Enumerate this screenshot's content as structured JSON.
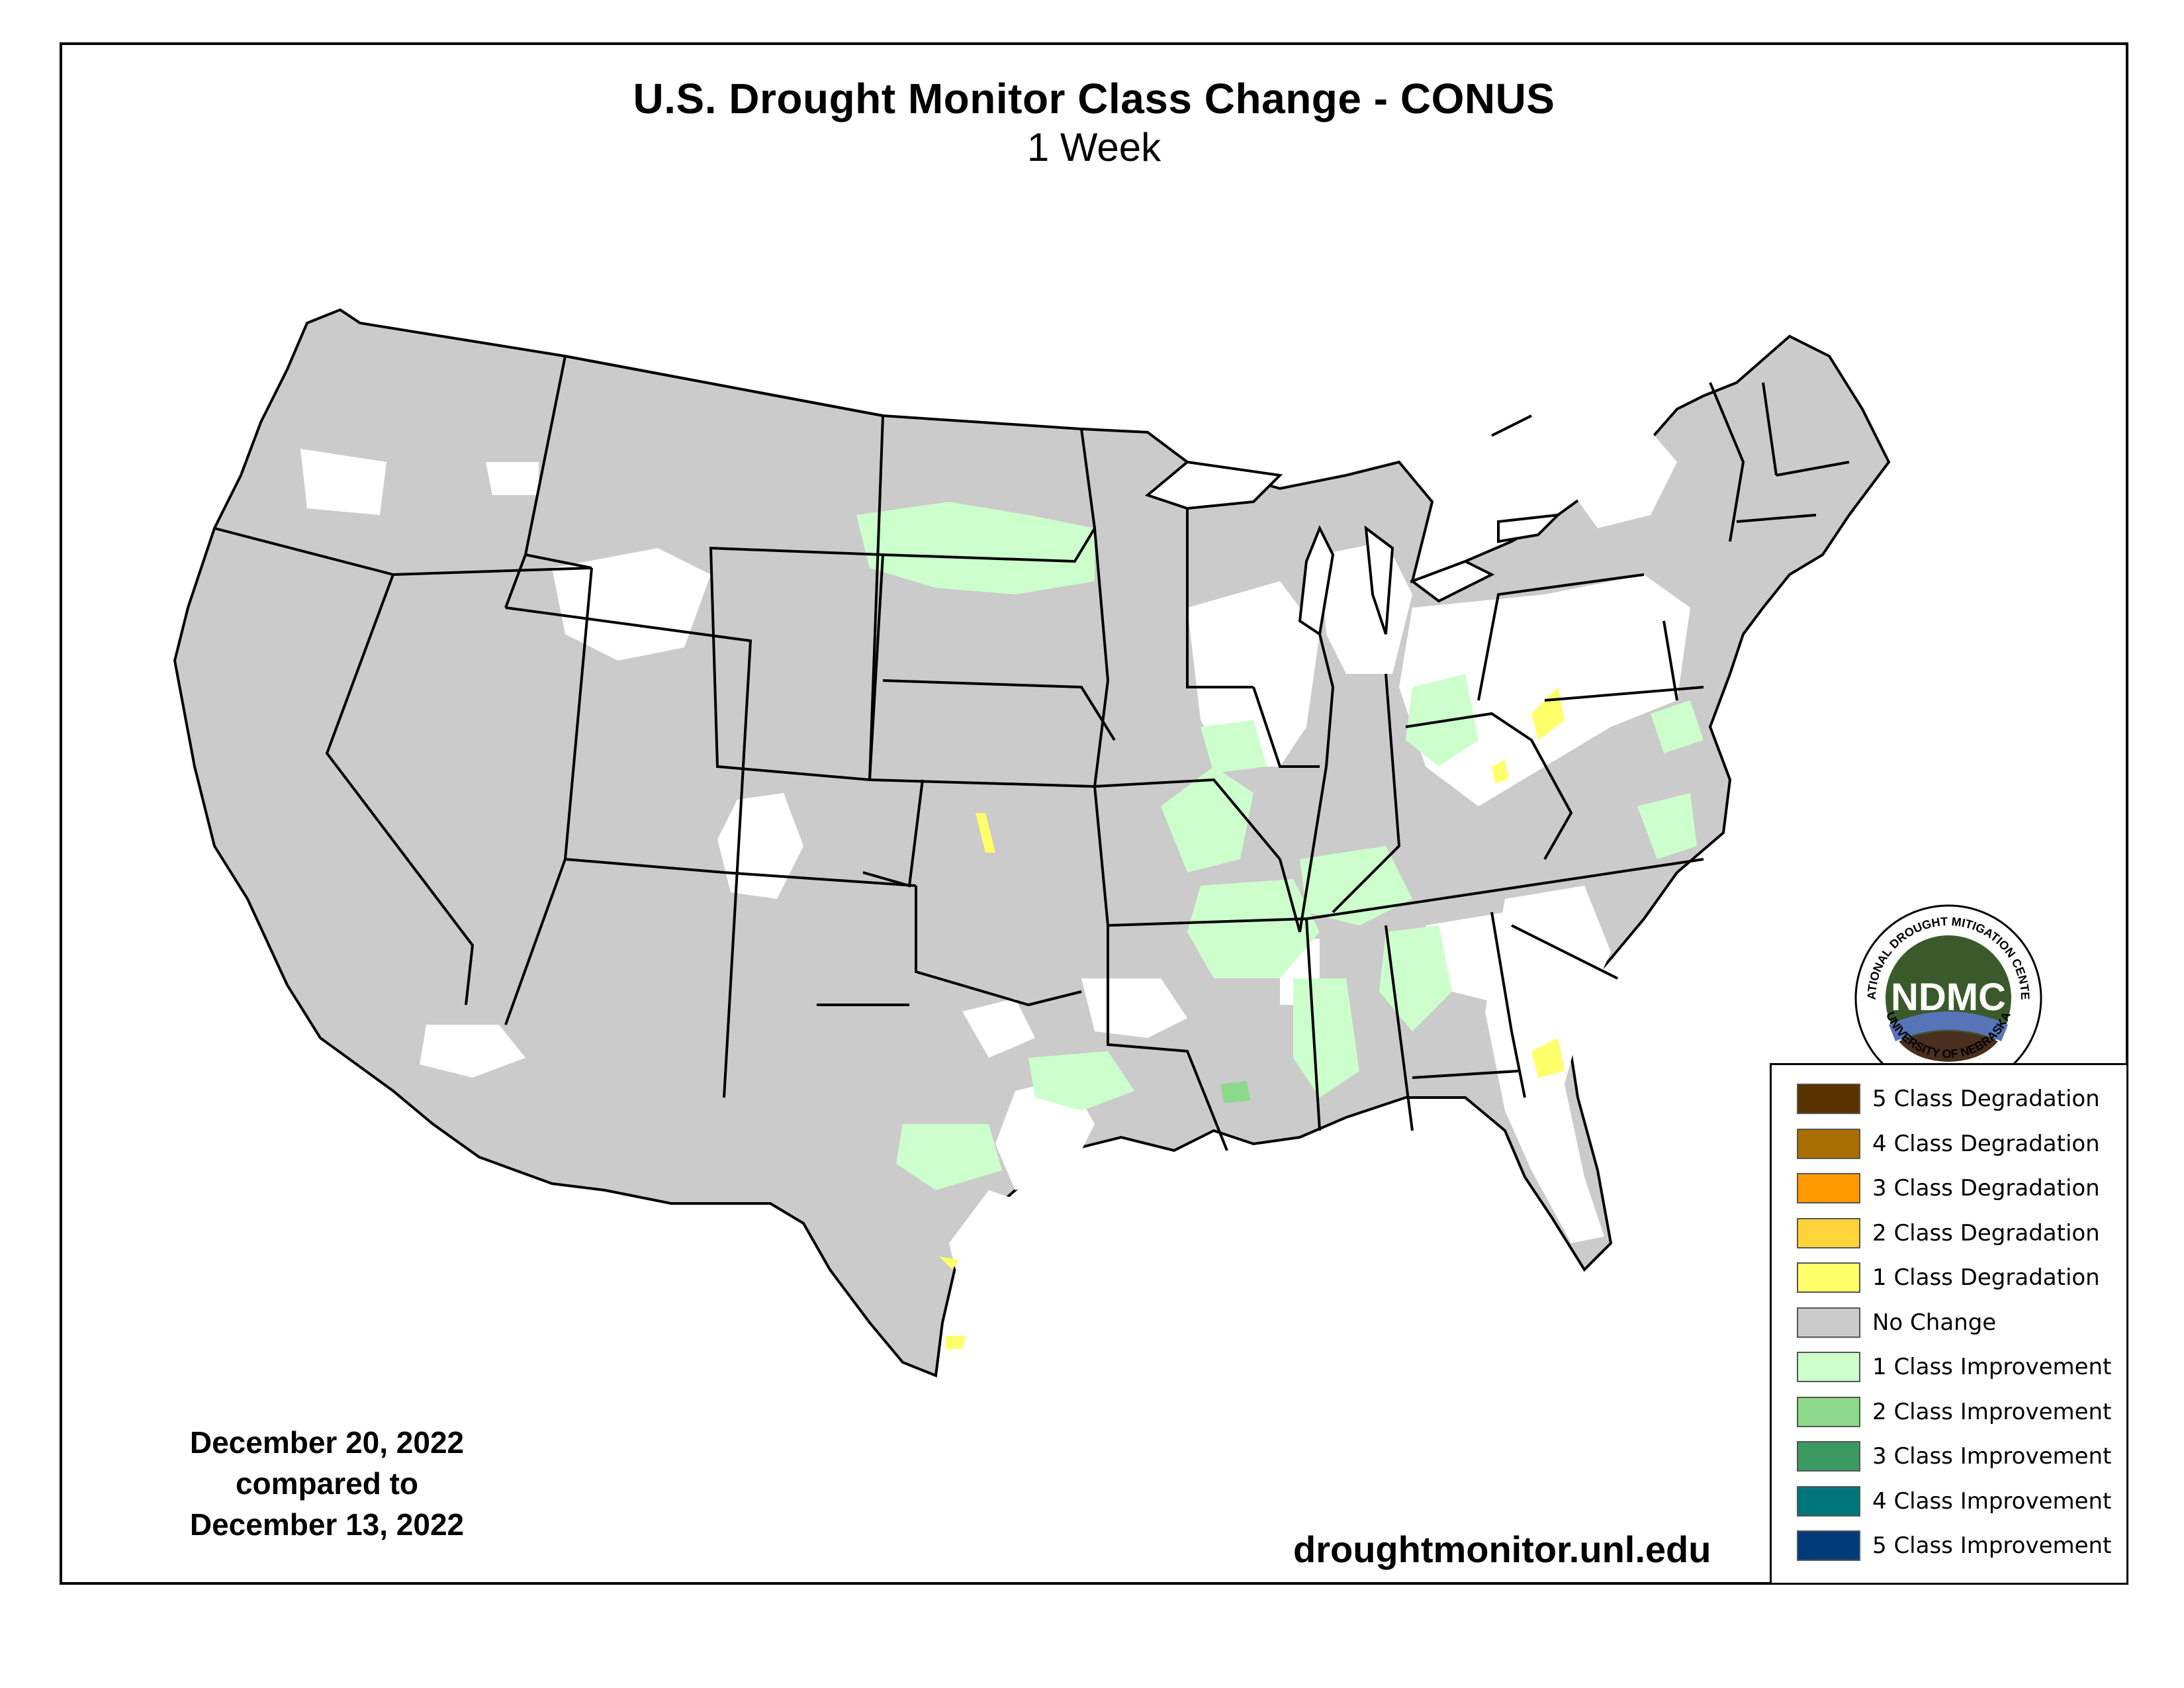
{
  "title": "U.S. Drought Monitor Class Change - CONUS",
  "subtitle": "1 Week",
  "date_current": "December 20, 2022",
  "date_compare_label": "compared to",
  "date_previous": "December 13, 2022",
  "website": "droughtmonitor.unl.edu",
  "logo": {
    "abbrev": "NDMC",
    "ring_top": "NATIONAL DROUGHT MITIGATION CENTER",
    "ring_bottom": "UNIVERSITY OF NEBRASKA",
    "colors": {
      "disc": "#3b5a2c",
      "water": "#5874b8",
      "land": "#4a2e1e"
    }
  },
  "legend": [
    {
      "label": "5 Class Degradation",
      "color": "#5a3200"
    },
    {
      "label": "4 Class Degradation",
      "color": "#a86e00"
    },
    {
      "label": "3 Class Degradation",
      "color": "#ff9a00"
    },
    {
      "label": "2 Class Degradation",
      "color": "#ffd33a"
    },
    {
      "label": "1 Class Degradation",
      "color": "#ffff6a"
    },
    {
      "label": "No Change",
      "color": "#cbcbcb"
    },
    {
      "label": "1 Class Improvement",
      "color": "#ccffcc"
    },
    {
      "label": "2 Class Improvement",
      "color": "#8cd98c"
    },
    {
      "label": "3 Class Improvement",
      "color": "#3a9a62"
    },
    {
      "label": "4 Class Improvement",
      "color": "#00767a"
    },
    {
      "label": "5 Class Improvement",
      "color": "#003a78"
    }
  ]
}
